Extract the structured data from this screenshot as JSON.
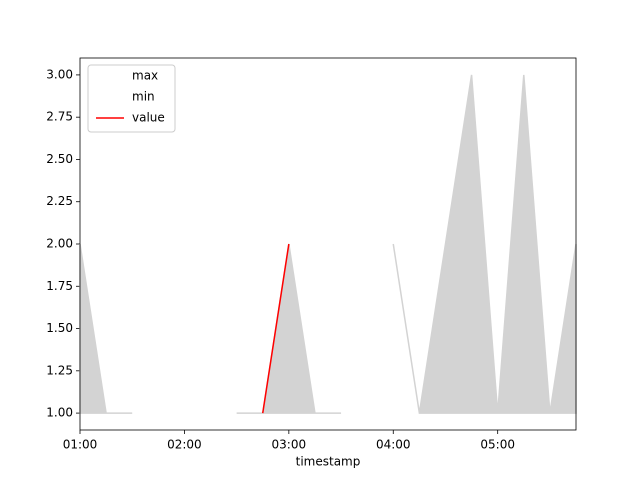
{
  "chart_data": {
    "type": "line",
    "categories": [
      "01:00",
      null,
      null,
      null,
      "02:00",
      null,
      null,
      null,
      "03:00",
      null,
      null,
      null,
      "04:00",
      null,
      null,
      null,
      "05:00",
      null,
      null,
      null
    ],
    "series": [
      {
        "name": "max",
        "color": "#ffffff",
        "values": [
          2,
          1,
          1,
          null,
          null,
          null,
          1,
          1,
          2,
          1,
          1,
          null,
          2,
          1,
          2,
          3,
          1,
          3,
          1,
          2
        ]
      },
      {
        "name": "min",
        "color": "#ffffff",
        "values": [
          1,
          1,
          1,
          null,
          null,
          null,
          1,
          1,
          1,
          1,
          1,
          null,
          2,
          1,
          1,
          1,
          1,
          1,
          1,
          1
        ]
      },
      {
        "name": "value",
        "color": "#ff0000",
        "values": [
          null,
          null,
          null,
          null,
          null,
          null,
          null,
          1,
          2,
          null,
          null,
          null,
          null,
          null,
          null,
          null,
          null,
          null,
          null,
          null
        ]
      }
    ],
    "fill_color": "#d3d3d3",
    "xlabel": "timestamp",
    "ylim": [
      0.9,
      3.1
    ],
    "yticks": [
      {
        "value": 1,
        "label": "1.00"
      },
      {
        "value": 1.25,
        "label": "1.25"
      },
      {
        "value": 1.5,
        "label": "1.50"
      },
      {
        "value": 1.75,
        "label": "1.75"
      },
      {
        "value": 2,
        "label": "2.00"
      },
      {
        "value": 2.25,
        "label": "2.25"
      },
      {
        "value": 2.5,
        "label": "2.50"
      },
      {
        "value": 2.75,
        "label": "2.75"
      },
      {
        "value": 3,
        "label": "3.00"
      }
    ],
    "legend": "upper left"
  }
}
